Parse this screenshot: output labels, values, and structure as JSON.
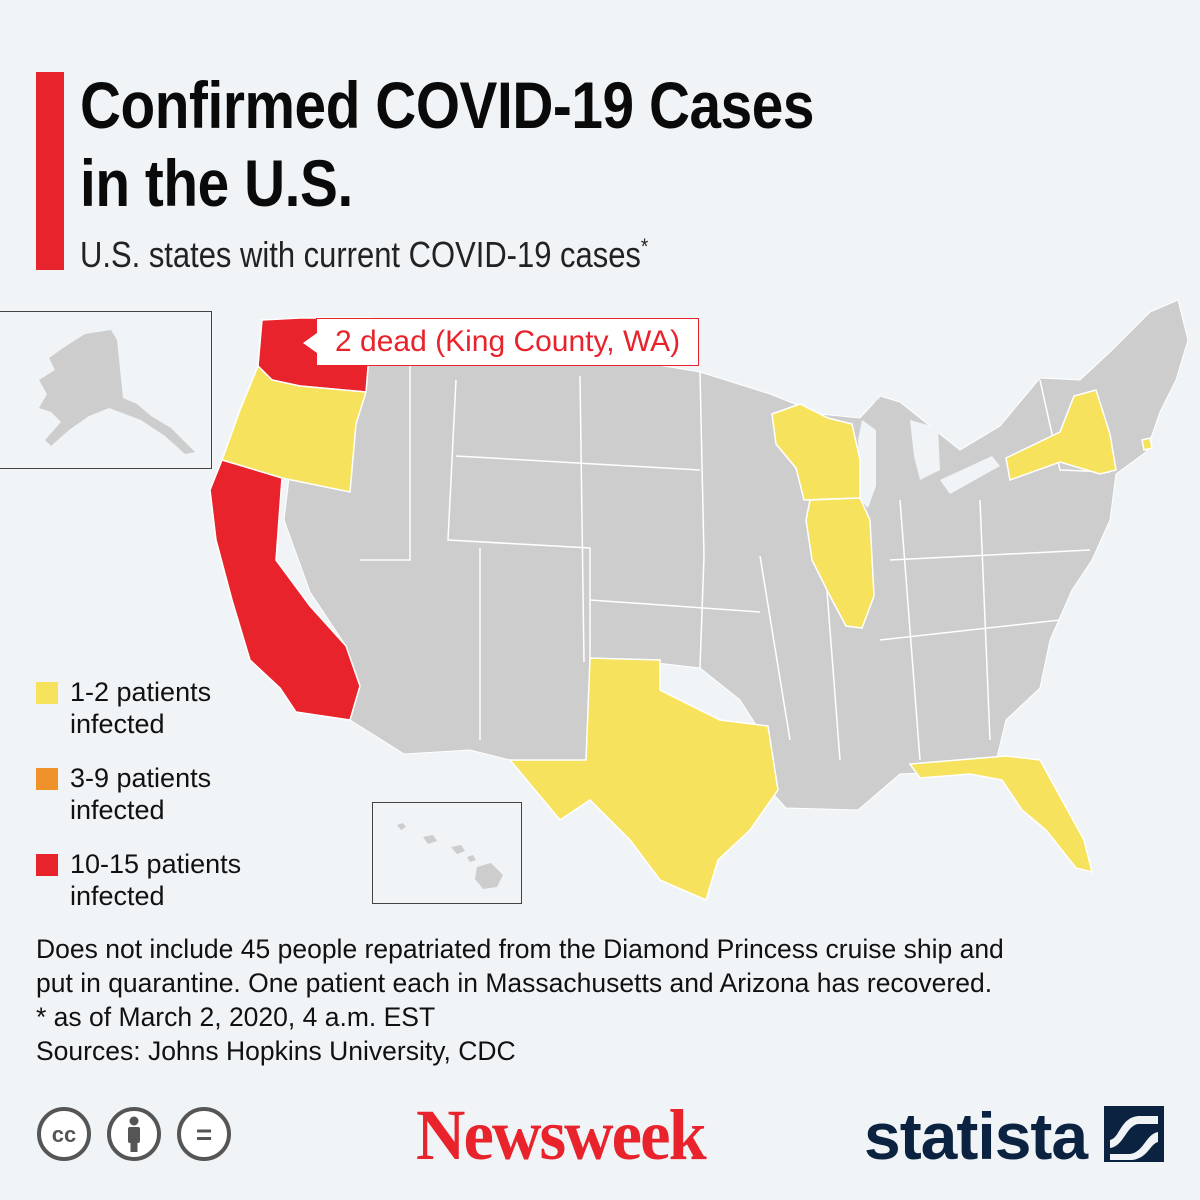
{
  "title_lines": [
    "Confirmed COVID-19 Cases",
    "in the U.S."
  ],
  "subtitle": "U.S. states with current COVID-19 cases",
  "subtitle_marker": "*",
  "annotation": "2 dead (King County, WA)",
  "colors": {
    "accent": "#e8232b",
    "background": "#f0f4f7",
    "no_cases": "#cdcdcd",
    "low": "#f6e25c",
    "mid": "#f0922a",
    "high": "#e8232b"
  },
  "legend": [
    {
      "line1": "1-2 patients",
      "line2": "infected",
      "color": "#f6e25c"
    },
    {
      "line1": "3-9 patients",
      "line2": "infected",
      "color": "#f0922a"
    },
    {
      "line1": "10-15 patients",
      "line2": "infected",
      "color": "#e8232b"
    }
  ],
  "states": {
    "Washington": "10-15 patients infected",
    "California": "10-15 patients infected",
    "Oregon": "1-2 patients infected",
    "Wisconsin": "1-2 patients infected",
    "Illinois": "1-2 patients infected",
    "Texas": "1-2 patients infected",
    "Florida": "1-2 patients infected",
    "New York": "1-2 patients infected",
    "Rhode Island": "1-2 patients infected"
  },
  "footnotes": [
    "Does not include 45 people repatriated from the Diamond Princess cruise ship and",
    "put in quarantine. One patient each in Massachusetts and Arizona has recovered.",
    "* as of March 2, 2020, 4 a.m. EST",
    "Sources: Johns Hopkins University, CDC"
  ],
  "license_icons": [
    "cc-icon",
    "attribution-icon",
    "no-derivatives-icon"
  ],
  "license_symbols": {
    "cc": "cc",
    "nd": "="
  },
  "brands": {
    "newsweek": "Newsweek",
    "statista": "statista"
  }
}
